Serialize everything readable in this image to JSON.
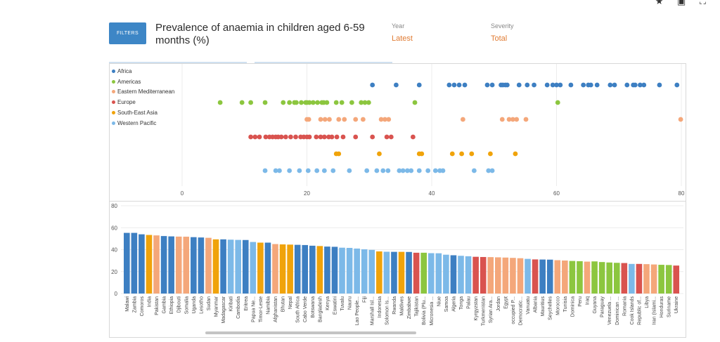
{
  "top_icons": "★ ▣ ⛶",
  "filters_label": "FILTERS",
  "title": "Prevalence of anaemia in children aged 6-59 months (%)",
  "filters": {
    "year_label": "Year",
    "year_value": "Latest",
    "severity_label": "Severity",
    "severity_value": "Total"
  },
  "colors": {
    "Africa": "#3d7fc2",
    "Americas": "#8cc63f",
    "Eastern Mediterranean": "#f4a77a",
    "Europe": "#d9534f",
    "South-East Asia": "#f0a30a",
    "Western Pacific": "#7cb9e8"
  },
  "chart_data": [
    {
      "type": "scatter",
      "legend": [
        "Africa",
        "Americas",
        "Eastern Mediterranean",
        "Europe",
        "South-East Asia",
        "Western Pacific"
      ],
      "xlim": [
        -12,
        80
      ],
      "xticks": [
        0,
        20,
        40,
        60,
        80
      ],
      "grid": true,
      "series": [
        {
          "name": "Africa",
          "values": [
            30.5,
            34.3,
            38.0,
            42.8,
            43.6,
            44.4,
            45.3,
            48.9,
            49.7,
            51.1,
            51.4,
            51.8,
            52.1,
            54.0,
            55.3,
            56.4,
            58.5,
            59.4,
            60.0,
            60.6,
            62.3,
            64.3,
            65.1,
            65.5,
            66.5,
            68.6,
            69.3,
            71.3,
            72.3,
            72.6,
            73.4,
            74.0,
            76.5,
            79.3
          ]
        },
        {
          "name": "Americas",
          "values": [
            6.1,
            9.6,
            11.0,
            13.3,
            16.2,
            17.2,
            18.0,
            18.3,
            19.1,
            19.8,
            20.0,
            20.4,
            21.0,
            21.7,
            22.4,
            22.7,
            23.2,
            24.7,
            25.6,
            27.2,
            28.7,
            29.3,
            29.9,
            37.3,
            60.2
          ]
        },
        {
          "name": "Eastern Mediterranean",
          "values": [
            20.0,
            20.3,
            22.2,
            22.9,
            23.6,
            25.1,
            26.0,
            27.8,
            29.0,
            31.9,
            32.5,
            33.1,
            45.0,
            51.3,
            52.4,
            53.0,
            53.6,
            55.1,
            79.9
          ]
        },
        {
          "name": "Europe",
          "values": [
            11.0,
            11.7,
            12.4,
            13.4,
            14.0,
            14.5,
            15.0,
            15.4,
            15.9,
            16.6,
            17.4,
            18.2,
            19.0,
            19.5,
            20.0,
            20.4,
            21.5,
            22.2,
            22.8,
            23.5,
            24.0,
            24.8,
            25.8,
            27.8,
            30.5,
            32.8,
            33.5,
            37.0
          ]
        },
        {
          "name": "South-East Asia",
          "values": [
            24.7,
            25.1,
            31.6,
            38.0,
            38.4,
            43.3,
            44.8,
            46.4,
            49.4,
            53.4
          ]
        },
        {
          "name": "Western Pacific",
          "values": [
            13.3,
            15.0,
            15.6,
            17.2,
            18.8,
            20.2,
            21.6,
            22.8,
            24.2,
            26.8,
            29.6,
            31.2,
            32.2,
            33.0,
            34.8,
            35.4,
            36.1,
            36.7,
            38.0,
            39.4,
            40.6,
            41.3,
            41.8,
            46.8,
            49.1,
            49.7
          ]
        }
      ]
    },
    {
      "type": "bar",
      "ylim": [
        0,
        80
      ],
      "yticks": [
        0,
        20,
        40,
        60,
        80
      ],
      "grid": true,
      "categories": [
        "Malawi",
        "Zambia",
        "Comoros",
        "India",
        "Pakistan",
        "Gambia",
        "Ethiopia",
        "Djibouti",
        "Somalia",
        "Uganda",
        "Lesotho",
        "Sudan",
        "Myanmar",
        "Madagascar",
        "Kiribati",
        "Cambodia",
        "Eritrea",
        "Papua Ne...",
        "Timor-Leste",
        "Namibia",
        "Afghanistan",
        "Bhutan",
        "Nepal",
        "South Africa",
        "Cabo Verde",
        "Botswana",
        "Bangladesh",
        "Kenya",
        "Eswatini",
        "Tuvalu",
        "Nauru",
        "Lao People...",
        "Fiji",
        "Marshall Isl...",
        "Indonesia",
        "Solomon Is...",
        "Rwanda",
        "Maldives",
        "Zimbabwe",
        "Tajikistan",
        "Bolivia (Plu...",
        "Micronesia ...",
        "Niue",
        "Samoa",
        "Algeria",
        "Tonga",
        "Palau",
        "Kyrgyzstan",
        "Turkmenistan",
        "Syrian Ara...",
        "Jordan",
        "Egypt",
        "occupied P...",
        "Democratic...",
        "Vanuatu",
        "Albania",
        "Mauritius",
        "Seychelles",
        "Morocco",
        "Tunisia",
        "Dominica",
        "Peru",
        "Iraq",
        "Guyana",
        "Paraguay",
        "Venezuela ...",
        "Dominican ...",
        "Romania",
        "Cook Islands",
        "Republic of...",
        "Libya",
        "Iran (Islami...",
        "Honduras",
        "Suriname",
        "Ukraine"
      ],
      "regions": [
        "Africa",
        "Africa",
        "Africa",
        "South-East Asia",
        "Eastern Mediterranean",
        "Africa",
        "Africa",
        "Eastern Mediterranean",
        "Eastern Mediterranean",
        "Africa",
        "Africa",
        "Eastern Mediterranean",
        "South-East Asia",
        "Africa",
        "Western Pacific",
        "Western Pacific",
        "Africa",
        "Western Pacific",
        "South-East Asia",
        "Africa",
        "Eastern Mediterranean",
        "South-East Asia",
        "South-East Asia",
        "Africa",
        "Africa",
        "Africa",
        "South-East Asia",
        "Africa",
        "Africa",
        "Western Pacific",
        "Western Pacific",
        "Western Pacific",
        "Western Pacific",
        "Western Pacific",
        "South-East Asia",
        "Western Pacific",
        "Africa",
        "South-East Asia",
        "Africa",
        "Europe",
        "Americas",
        "Western Pacific",
        "Western Pacific",
        "Western Pacific",
        "Africa",
        "Western Pacific",
        "Western Pacific",
        "Europe",
        "Europe",
        "Eastern Mediterranean",
        "Eastern Mediterranean",
        "Eastern Mediterranean",
        "Eastern Mediterranean",
        "Eastern Mediterranean",
        "Western Pacific",
        "Europe",
        "Africa",
        "Africa",
        "Eastern Mediterranean",
        "Eastern Mediterranean",
        "Americas",
        "Americas",
        "Eastern Mediterranean",
        "Americas",
        "Americas",
        "Americas",
        "Americas",
        "Europe",
        "Western Pacific",
        "Europe",
        "Eastern Mediterranean",
        "Eastern Mediterranean",
        "Americas",
        "Americas",
        "Europe"
      ],
      "values": [
        55.3,
        55.3,
        54.0,
        53.4,
        53.0,
        52.4,
        52.1,
        51.9,
        51.8,
        51.4,
        51.1,
        50.8,
        49.4,
        49.4,
        49.1,
        48.9,
        48.8,
        47.0,
        46.4,
        46.4,
        45.1,
        44.8,
        44.6,
        44.4,
        44.2,
        43.6,
        43.3,
        42.8,
        42.6,
        41.8,
        41.6,
        41.0,
        40.3,
        39.8,
        38.4,
        38.1,
        38.0,
        38.0,
        37.9,
        37.2,
        37.2,
        36.8,
        36.7,
        35.4,
        34.9,
        34.4,
        34.0,
        33.5,
        33.3,
        33.2,
        33.0,
        32.8,
        32.5,
        32.2,
        31.6,
        31.1,
        31.0,
        30.9,
        30.4,
        30.1,
        29.7,
        29.5,
        29.1,
        29.3,
        28.7,
        28.3,
        28.0,
        27.8,
        27.0,
        27.0,
        26.8,
        26.5,
        26.2,
        26.0,
        25.5
      ]
    }
  ]
}
